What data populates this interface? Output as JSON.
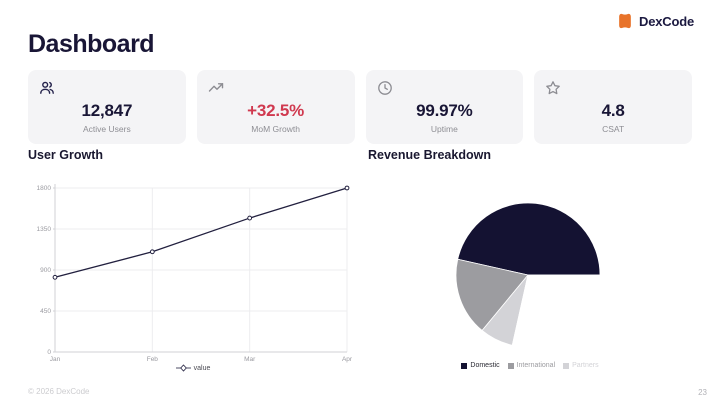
{
  "header": {
    "title": "Dashboard",
    "brand": "DexCode"
  },
  "kpi_cards": [
    {
      "icon": "users-icon",
      "value": "12,847",
      "label": "Active Users",
      "value_color": "#191636",
      "icon_color": "#23214a"
    },
    {
      "icon": "trending-up-icon",
      "value": "+32.5%",
      "label": "MoM Growth",
      "value_color": "#d0394f",
      "icon_color": "#8c8c92"
    },
    {
      "icon": "clock-icon",
      "value": "99.97%",
      "label": "Uptime",
      "value_color": "#191636",
      "icon_color": "#8c8c92"
    },
    {
      "icon": "star-icon",
      "value": "4.8",
      "label": "CSAT",
      "value_color": "#191636",
      "icon_color": "#8c8c92"
    }
  ],
  "sections": {
    "left_title": "User Growth",
    "right_title": "Revenue Breakdown"
  },
  "footer": {
    "copyright": "© 2026 DexCode",
    "page_number": "23"
  },
  "colors": {
    "accent_orange": "#e8732a",
    "navy": "#191636",
    "red": "#d0394f",
    "card_bg": "#f4f4f6",
    "grid": "#ededef",
    "axis": "#d2d2d6",
    "tick_text": "#9a9aa0"
  },
  "chart_data": [
    {
      "type": "line",
      "title": "User Growth",
      "x": [
        "Jan",
        "Feb",
        "Mar",
        "Apr"
      ],
      "series": [
        {
          "name": "value",
          "values": [
            820,
            1100,
            1470,
            1800
          ]
        }
      ],
      "ylim": [
        0,
        1800
      ],
      "yticks": [
        0,
        450,
        900,
        1350,
        1800
      ],
      "grid": true,
      "legend_position": "bottom",
      "line_color": "#22203f",
      "marker": "circle-open"
    },
    {
      "type": "pie",
      "title": "Revenue Breakdown",
      "segments": [
        {
          "label": "Domestic",
          "pct": 46.5,
          "color": "#141232"
        },
        {
          "label": "International",
          "pct": 17.5,
          "color": "#9c9ca0"
        },
        {
          "label": "Partners",
          "pct": 7.5,
          "color": "#d3d3d7"
        },
        {
          "label": "",
          "pct": 28.5,
          "color": "#ffffff"
        }
      ],
      "start_angle_deg": 0,
      "direction": "counterclockwise",
      "legend_position": "bottom"
    }
  ]
}
